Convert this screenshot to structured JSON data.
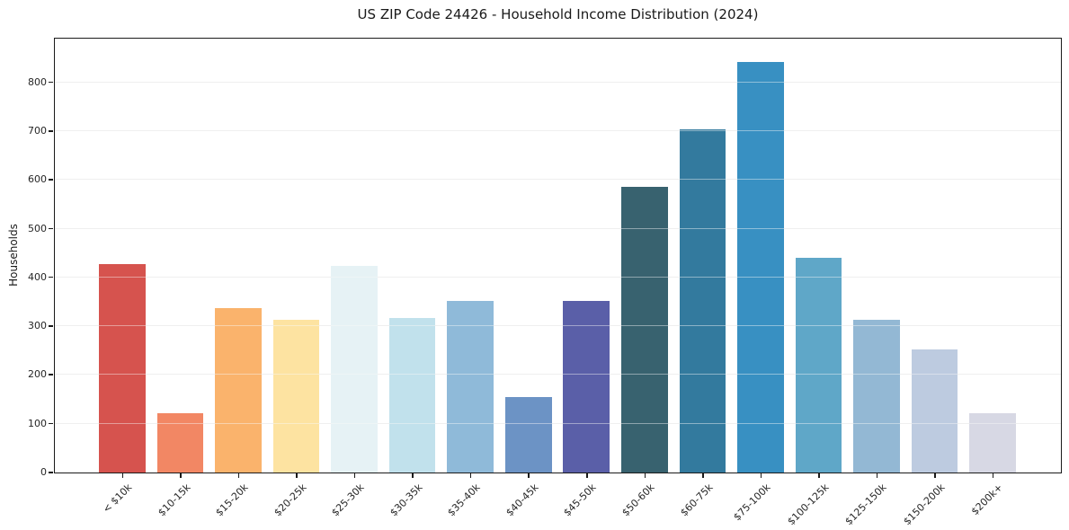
{
  "chart_data": {
    "type": "bar",
    "title": "US ZIP Code 24426 - Household Income Distribution (2024)",
    "xlabel": "",
    "ylabel": "Households",
    "categories": [
      "< $10k",
      "$10-15k",
      "$15-20k",
      "$20-25k",
      "$25-30k",
      "$30-35k",
      "$35-40k",
      "$40-45k",
      "$45-50k",
      "$50-60k",
      "$60-75k",
      "$75-100k",
      "$100-125k",
      "$125-150k",
      "$150-200k",
      "$200k+"
    ],
    "values": [
      428,
      122,
      338,
      314,
      424,
      316,
      351,
      155,
      352,
      585,
      703,
      842,
      440,
      314,
      253,
      121
    ],
    "bar_colors": [
      "#d6534e",
      "#f28764",
      "#fab36c",
      "#fde3a1",
      "#e6f2f5",
      "#c1e1ec",
      "#8fbad9",
      "#6c93c5",
      "#5a5fa8",
      "#38626f",
      "#337a9e",
      "#3890c2",
      "#5fa7c8",
      "#93b8d4",
      "#bdcbe0",
      "#d7d8e4"
    ],
    "ylim": [
      0,
      888
    ],
    "yticks": [
      0,
      100,
      200,
      300,
      400,
      500,
      600,
      700,
      800
    ],
    "x_tick_rotation_deg": 45,
    "grid": "horizontal-only",
    "legend": "none",
    "background_color": "#ffffff",
    "axis_color": "#1a1a1a",
    "gridline_color": "#e7e7e7",
    "text_color": "#262626"
  }
}
